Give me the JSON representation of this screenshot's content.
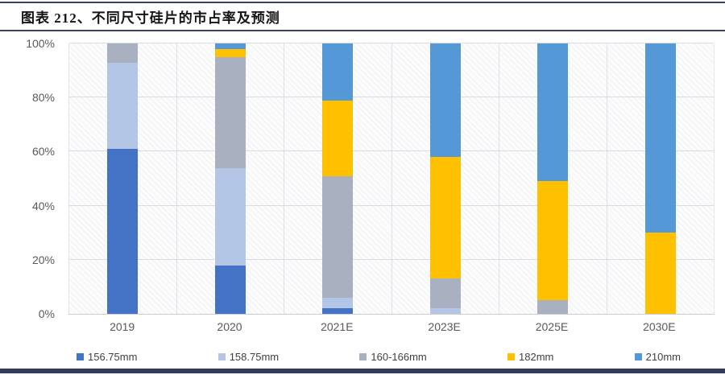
{
  "page": {
    "title": "图表 212、不同尺寸硅片的市占率及预测"
  },
  "colors": {
    "rule": "#3A4262",
    "bottom_bar": "#333A5C",
    "axis_text": "#595959",
    "legend_text": "#404040"
  },
  "chart_data": {
    "type": "bar",
    "stacked": true,
    "title": "不同尺寸硅片的市占率及预测",
    "xlabel": "",
    "ylabel": "",
    "ylim": [
      0,
      100
    ],
    "yticks": [
      "0%",
      "20%",
      "40%",
      "60%",
      "80%",
      "100%"
    ],
    "grid": true,
    "legend_position": "bottom",
    "categories": [
      "2019",
      "2020",
      "2021E",
      "2023E",
      "2025E",
      "2030E"
    ],
    "series": [
      {
        "name": "156.75mm",
        "color": "#4472C4",
        "values": [
          61,
          18,
          2,
          0,
          0,
          0
        ]
      },
      {
        "name": "158.75mm",
        "color": "#B3C6E6",
        "values": [
          32,
          36,
          4,
          2,
          0,
          0
        ]
      },
      {
        "name": "160-166mm",
        "color": "#A9B0BF",
        "values": [
          7,
          41,
          45,
          11,
          5,
          0
        ]
      },
      {
        "name": "182mm",
        "color": "#FFC000",
        "values": [
          0,
          3,
          28,
          45,
          44,
          30
        ]
      },
      {
        "name": "210mm",
        "color": "#5598D6",
        "values": [
          0,
          2,
          21,
          42,
          51,
          70
        ]
      }
    ]
  }
}
